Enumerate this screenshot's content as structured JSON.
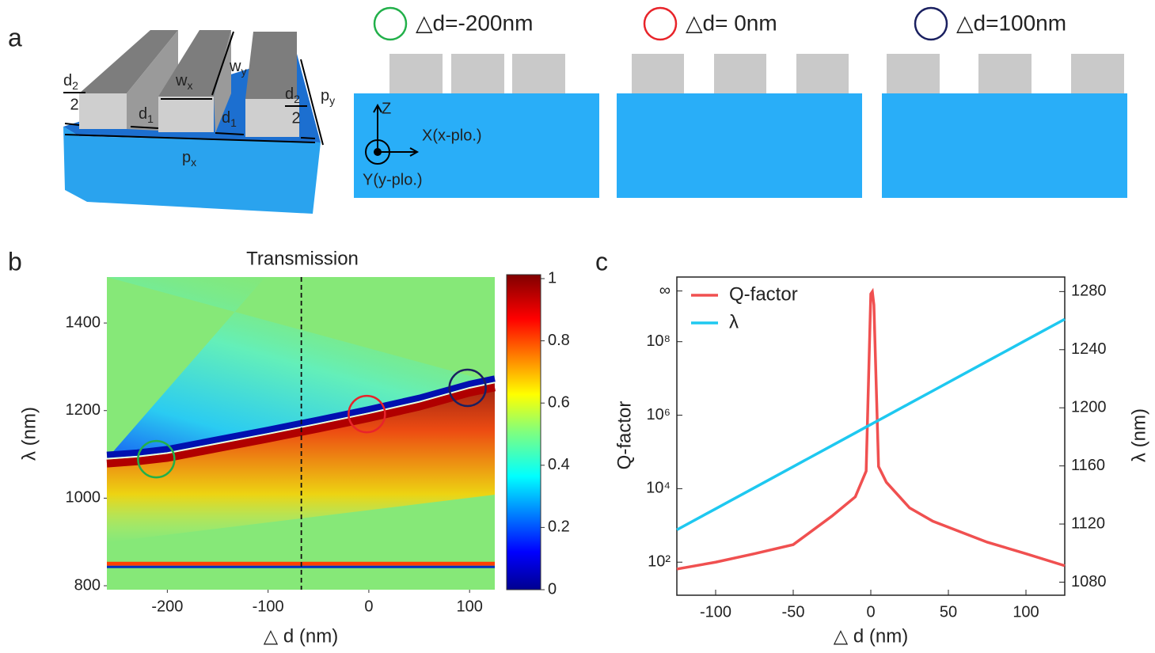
{
  "panel_labels": [
    "a",
    "b",
    "c"
  ],
  "schematic": {
    "fractions": [
      {
        "base": "d",
        "sub": "2",
        "den": "2"
      },
      {
        "base": "d",
        "sub": "2",
        "den": "2"
      }
    ],
    "labels": [
      {
        "base": "w",
        "sub": "x"
      },
      {
        "base": "w",
        "sub": "y"
      },
      {
        "base": "d",
        "sub": "1"
      },
      {
        "base": "d",
        "sub": "1"
      },
      {
        "base": "p",
        "sub": "y"
      },
      {
        "base": "p",
        "sub": "x"
      }
    ],
    "axes": [
      "Z",
      "X(x-plo.)",
      "Y(y-plo.)"
    ],
    "conditions": [
      {
        "label": "△d=-200nm",
        "color": "#22b04a"
      },
      {
        "label": "△d= 0nm",
        "color": "#e8242a"
      },
      {
        "label": "△d=100nm",
        "color": "#1a2060"
      }
    ]
  },
  "chart_data": [
    {
      "type": "heatmap",
      "title": "Transmission",
      "xlabel": "△ d (nm)",
      "ylabel": "λ (nm)",
      "xlim": [
        -260,
        125
      ],
      "ylim": [
        791,
        1505
      ],
      "xticks": [
        -200,
        -100,
        0,
        100
      ],
      "yticks": [
        800,
        1000,
        1200,
        1400
      ],
      "resonance": {
        "x": [
          -260,
          -230,
          -200,
          -150,
          -100,
          -50,
          0,
          50,
          100,
          125
        ],
        "values": [
          1090,
          1095,
          1103,
          1125,
          1147,
          1170,
          1194,
          1220,
          1252,
          1264
        ]
      },
      "band": 843,
      "dashed_x": -67,
      "markers": [
        {
          "x": -211,
          "y": 1089,
          "color": "#22b04a"
        },
        {
          "x": -2,
          "y": 1192,
          "color": "#e8242a"
        },
        {
          "x": 98,
          "y": 1252,
          "color": "#1a2060"
        }
      ],
      "colorbar": {
        "lim": [
          0,
          1
        ],
        "ticks": [
          0,
          0.2,
          0.4,
          0.6,
          0.8,
          1
        ]
      }
    },
    {
      "type": "line",
      "xlabel": "△ d (nm)",
      "ylabel": "Q-factor",
      "y2label": "λ (nm)",
      "xlim": [
        -125,
        125
      ],
      "xticks": [
        -100,
        -50,
        0,
        50,
        100
      ],
      "log": true,
      "ylim": [
        12.6,
        5750000000
      ],
      "yticks": [
        {
          "value": 100,
          "label": "10²"
        },
        {
          "value": 10000,
          "label": "10⁴"
        },
        {
          "value": 1000000,
          "label": "10⁶"
        },
        {
          "value": 100000000,
          "label": "10⁸"
        },
        {
          "value": 2400000000,
          "label": "∞"
        }
      ],
      "y2lim": [
        1071,
        1290
      ],
      "y2ticks": [
        1080,
        1120,
        1160,
        1200,
        1240,
        1280
      ],
      "x": [
        -125,
        -100,
        -75,
        -50,
        -25,
        -10,
        -3,
        0,
        1,
        2,
        5,
        10,
        25,
        40,
        75,
        100,
        125
      ],
      "series": [
        {
          "name": "Q-factor",
          "color": "#f05050",
          "values": [
            65,
            100,
            170,
            300,
            1800,
            6000,
            30000,
            2000000000,
            2300000000,
            1000000000,
            40000,
            15000,
            3000,
            1300,
            350,
            170,
            80
          ]
        },
        {
          "name": "λ",
          "color": "#1ec8f0",
          "axis": "y2",
          "values": [
            1116,
            1130.5,
            1145,
            1159.5,
            1174,
            1182.7,
            1186.8,
            1188.5,
            1189.1,
            1189.7,
            1191.4,
            1194.3,
            1203,
            1211.7,
            1232,
            1246.5,
            1261
          ]
        }
      ],
      "legend": "upper left"
    }
  ]
}
